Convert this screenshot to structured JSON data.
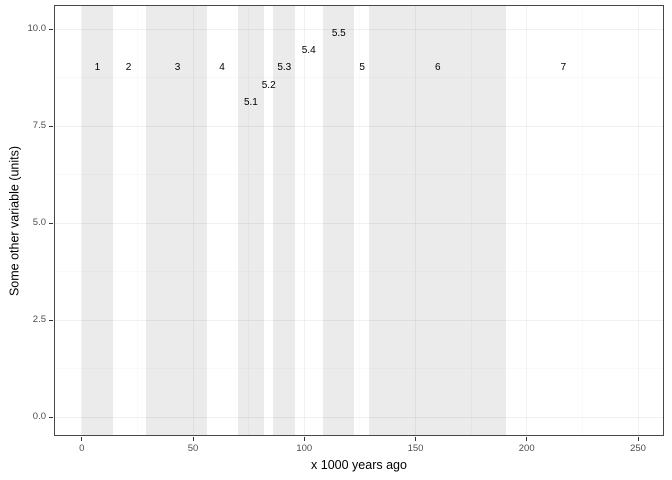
{
  "chart_data": {
    "type": "scatter",
    "marker": "text-labels",
    "title": "",
    "xlabel": "x 1000 years ago",
    "ylabel": "Some other variable (units)",
    "xlim": [
      -12.5,
      261.7
    ],
    "ylim": [
      -0.48,
      10.62
    ],
    "grid": "on",
    "legend": "none",
    "x_ticks": [
      {
        "v": 0,
        "label": "0"
      },
      {
        "v": 50,
        "label": "50"
      },
      {
        "v": 100,
        "label": "100"
      },
      {
        "v": 150,
        "label": "150"
      },
      {
        "v": 200,
        "label": "200"
      },
      {
        "v": 250,
        "label": "250"
      }
    ],
    "y_ticks": [
      {
        "v": 0,
        "label": "0.0"
      },
      {
        "v": 2.5,
        "label": "2.5"
      },
      {
        "v": 5,
        "label": "5.0"
      },
      {
        "v": 7.5,
        "label": "7.5"
      },
      {
        "v": 10,
        "label": "10.0"
      }
    ],
    "x_minor_ticks": [
      25,
      75,
      125,
      175,
      225
    ],
    "y_minor_ticks": [
      1.25,
      3.75,
      6.25,
      8.75
    ],
    "shaded_bands": [
      {
        "stage": "1",
        "from": 0,
        "to": 14
      },
      {
        "stage": "3",
        "from": 29,
        "to": 56.5
      },
      {
        "stage": "5.1",
        "from": 70,
        "to": 82
      },
      {
        "stage": "5.3",
        "from": 86,
        "to": 96
      },
      {
        "stage": "5.5",
        "from": 108.5,
        "to": 122.5
      },
      {
        "stage": "6",
        "from": 129,
        "to": 190.5
      }
    ],
    "labels": [
      {
        "text": "1",
        "x": 7,
        "y": 9
      },
      {
        "text": "2",
        "x": 21,
        "y": 9
      },
      {
        "text": "3",
        "x": 43,
        "y": 9
      },
      {
        "text": "4",
        "x": 63,
        "y": 9
      },
      {
        "text": "5.1",
        "x": 76,
        "y": 8.1
      },
      {
        "text": "5.2",
        "x": 84,
        "y": 8.55
      },
      {
        "text": "5.3",
        "x": 91,
        "y": 9
      },
      {
        "text": "5.4",
        "x": 102,
        "y": 9.45
      },
      {
        "text": "5.5",
        "x": 115.5,
        "y": 9.9
      },
      {
        "text": "5",
        "x": 126,
        "y": 9
      },
      {
        "text": "6",
        "x": 160,
        "y": 9
      },
      {
        "text": "7",
        "x": 216.5,
        "y": 9
      }
    ],
    "colors": {
      "band_fill": "#ebebeb",
      "grid_major": "rgba(0,0,0,0.055)",
      "grid_minor": "rgba(0,0,0,0.025)",
      "panel_border": "#474747",
      "tick_mark": "#333333",
      "tick_label": "#4d4d4d",
      "label_text": "#000000",
      "background": "#ffffff"
    }
  }
}
